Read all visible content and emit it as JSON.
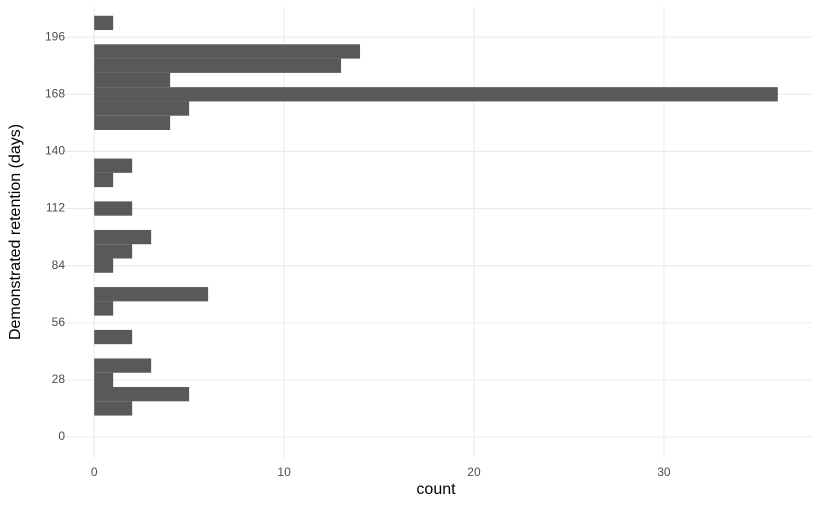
{
  "chart_data": {
    "type": "histogram",
    "orientation": "horizontal",
    "x_label": "count",
    "y_label": "Demonstrated retention (days)",
    "bins": [
      10.5,
      17.5,
      24.5,
      31.5,
      38.5,
      45.5,
      52.5,
      59.5,
      66.5,
      73.5,
      80.5,
      87.5,
      94.5,
      101.5,
      108.5,
      115.5,
      122.5,
      129.5,
      136.5,
      143.5,
      150.5,
      157.5,
      164.5,
      171.5,
      178.5,
      185.5,
      192.5,
      199.5,
      206.5
    ],
    "counts": [
      2,
      5,
      1,
      3,
      0,
      2,
      0,
      1,
      6,
      0,
      1,
      2,
      3,
      0,
      2,
      0,
      1,
      2,
      0,
      0,
      4,
      5,
      36,
      4,
      13,
      14,
      0,
      1
    ],
    "color": "#595959",
    "xlim": [
      -1.8,
      37.8
    ],
    "xticks": [
      0,
      10,
      20,
      30
    ],
    "ylim": [
      -10.3,
      210.8
    ],
    "yticks": [
      0,
      28,
      56,
      84,
      112,
      140,
      168,
      196
    ],
    "grid": true
  }
}
